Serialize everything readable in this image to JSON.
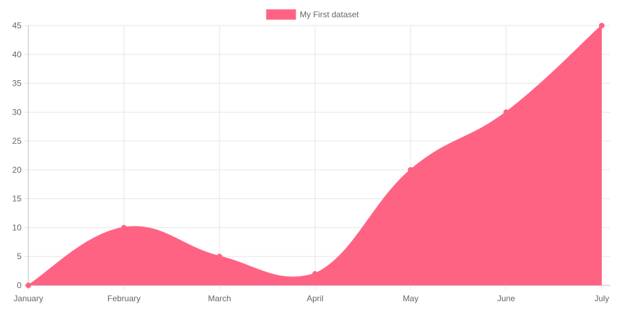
{
  "chart_data": {
    "type": "area",
    "categories": [
      "January",
      "February",
      "March",
      "April",
      "May",
      "June",
      "July"
    ],
    "series": [
      {
        "name": "My First dataset",
        "values": [
          0,
          10,
          5,
          2,
          20,
          30,
          45
        ],
        "color": "#ff6384"
      }
    ],
    "ylim": [
      0,
      45
    ],
    "y_ticks": [
      0,
      5,
      10,
      15,
      20,
      25,
      30,
      35,
      40,
      45
    ],
    "grid": true,
    "legend": "top-center",
    "smooth": true
  }
}
